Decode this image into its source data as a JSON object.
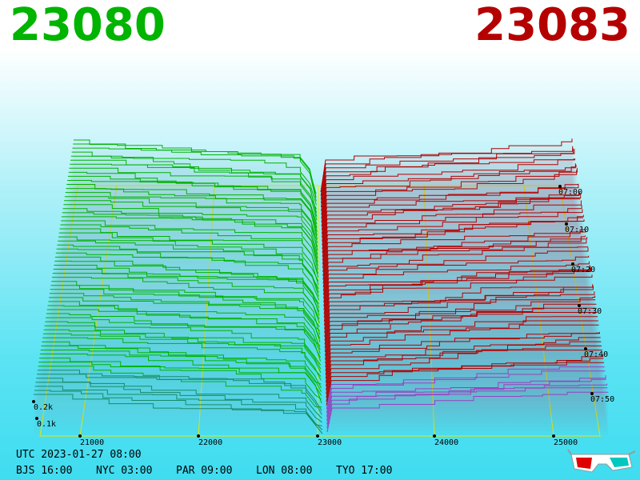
{
  "header": {
    "bid": "23080",
    "ask": "23083"
  },
  "axes": {
    "price_ticks": [
      "21000",
      "22000",
      "23000",
      "24000",
      "25000"
    ],
    "time_ticks": [
      "07:00",
      "07:10",
      "07:20",
      "07:30",
      "07:40",
      "07:50"
    ],
    "depth_ticks": [
      "0.2k",
      "0.1k"
    ]
  },
  "footer": {
    "utc": "UTC 2023-01-27 08:00",
    "clocks": [
      "BJS 16:00",
      "NYC 03:00",
      "PAR 09:00",
      "LON 08:00",
      "TYO 17:00"
    ]
  }
}
